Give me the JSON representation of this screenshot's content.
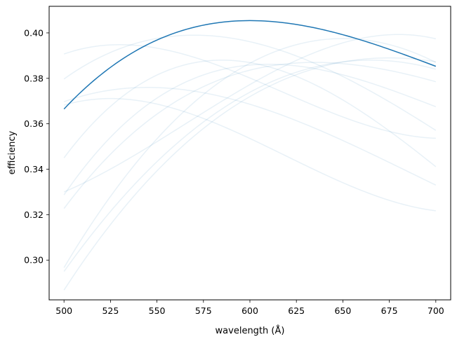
{
  "chart_data": {
    "type": "line",
    "title": "",
    "xlabel": "wavelength (Å)",
    "ylabel": "efficiency",
    "xlim": [
      492,
      708
    ],
    "ylim": [
      0.2825,
      0.4117
    ],
    "xticks": [
      500,
      525,
      550,
      575,
      600,
      625,
      650,
      675,
      700
    ],
    "yticks": [
      0.3,
      0.32,
      0.34,
      0.36,
      0.38,
      0.4
    ],
    "ytick_labels": [
      "0.30",
      "0.32",
      "0.34",
      "0.36",
      "0.38",
      "0.40"
    ],
    "grid": false,
    "legend": "none",
    "highlight_color": "#1f77b4",
    "faint_opacity": 0.1,
    "series": [
      {
        "highlight": true,
        "peak_x": 600,
        "peak_y": 0.4054,
        "y_start": 0.3665,
        "y_end": 0.3853
      },
      {
        "highlight": false,
        "peak_x": 530,
        "peak_y": 0.3948,
        "y_start": 0.3907,
        "y_end": 0.3536
      },
      {
        "highlight": false,
        "peak_x": 525,
        "peak_y": 0.3711,
        "y_start": 0.3682,
        "y_end": 0.3217
      },
      {
        "highlight": false,
        "peak_x": 545,
        "peak_y": 0.376,
        "y_start": 0.3697,
        "y_end": 0.333
      },
      {
        "highlight": false,
        "peak_x": 570,
        "peak_y": 0.399,
        "y_start": 0.3797,
        "y_end": 0.3571
      },
      {
        "highlight": false,
        "peak_x": 585,
        "peak_y": 0.388,
        "y_start": 0.345,
        "y_end": 0.3411
      },
      {
        "highlight": false,
        "peak_x": 610,
        "peak_y": 0.3862,
        "y_start": 0.3287,
        "y_end": 0.3675
      },
      {
        "highlight": false,
        "peak_x": 635,
        "peak_y": 0.387,
        "y_start": 0.3227,
        "y_end": 0.3785
      },
      {
        "highlight": false,
        "peak_x": 650,
        "peak_y": 0.3975,
        "y_start": 0.2967,
        "y_end": 0.387
      },
      {
        "highlight": false,
        "peak_x": 665,
        "peak_y": 0.388,
        "y_start": 0.295,
        "y_end": 0.384
      },
      {
        "highlight": false,
        "peak_x": 675,
        "peak_y": 0.389,
        "y_start": 0.2868,
        "y_end": 0.3873
      },
      {
        "highlight": false,
        "peak_x": 680,
        "peak_y": 0.3993,
        "y_start": 0.33,
        "y_end": 0.3974
      }
    ]
  }
}
